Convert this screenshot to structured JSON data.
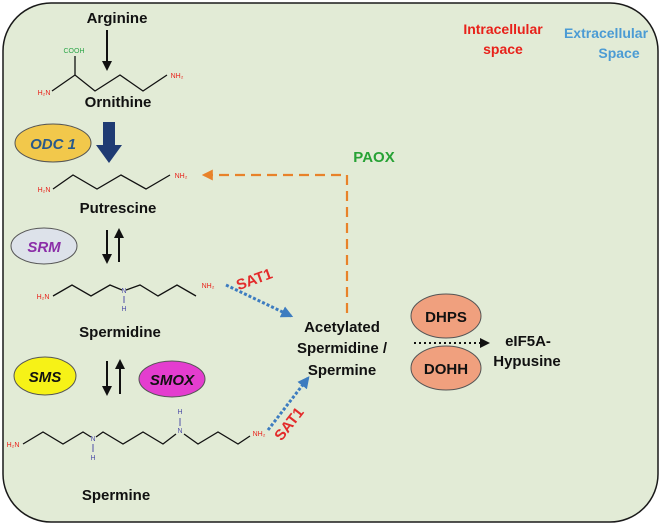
{
  "regions": {
    "intracellular": [
      "Intracellular",
      "space"
    ],
    "extracellular": [
      "Extracellular",
      "Space"
    ]
  },
  "molecules": {
    "arginine": "Arginine",
    "ornithine": "Ornithine",
    "putrescine": "Putrescine",
    "spermidine": "Spermidine",
    "spermine": "Spermine",
    "acetylated": [
      "Acetylated",
      "Spermidine /",
      "Spermine"
    ],
    "product": [
      "eIF5A-",
      "Hypusine"
    ]
  },
  "structure_labels": {
    "cooh": "COOH",
    "h2n": "H₂N",
    "nh2": "NH₂",
    "n": "N",
    "h": "H"
  },
  "enzymes": {
    "odc1": "ODC 1",
    "srm": "SRM",
    "sms": "SMS",
    "smox": "SMOX",
    "dhps": "DHPS",
    "dohh": "DOHH",
    "sat1_upper": "SAT1",
    "sat1_lower": "SAT1",
    "paox": "PAOX"
  },
  "colors": {
    "cell_fill": "#e2ebd6",
    "cell_stroke": "#1a1a1a",
    "intracellular": "#e8211a",
    "extracellular": "#4b9bd4",
    "odc1_fill": "#f2c84b",
    "odc1_text": "#2a5a8a",
    "srm_fill": "#dde2ea",
    "srm_text": "#8b2ea8",
    "sms_fill": "#f6f217",
    "smox_fill": "#e43dcf",
    "dhps_fill": "#f0a07e",
    "sat1": "#e32b2b",
    "paox": "#27a235",
    "paox_arrow": "#e8822a",
    "sat1_arrow": "#3d7cc0",
    "big_arrow": "#1f3b73",
    "nh2": "#e8211a",
    "cooh": "#2ea64a",
    "nitrogen": "#5050a8"
  }
}
